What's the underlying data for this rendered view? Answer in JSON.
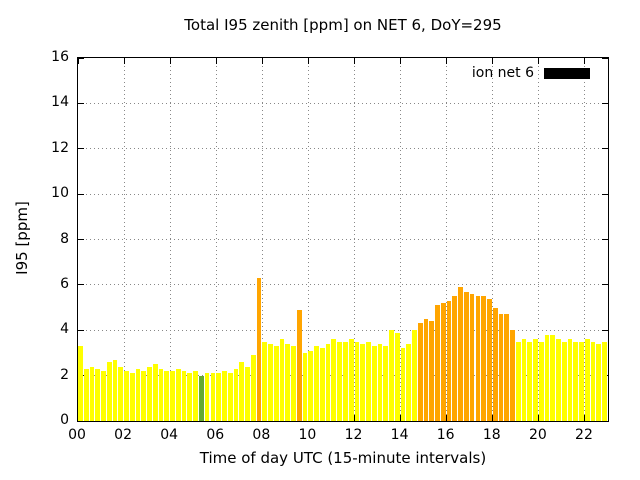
{
  "legend": {
    "label": "ion net 6",
    "swatch_color": "#000000"
  },
  "colors": {
    "yellow": "#ffff00",
    "orange": "#ffa500",
    "green": "#66aa33",
    "grid": "#888888",
    "axis": "#000000",
    "background": "#ffffff"
  },
  "chart_data": {
    "type": "bar",
    "title": "Total I95 zenith [ppm] on NET 6, DoY=295",
    "xlabel": "Time of day UTC (15-minute intervals)",
    "ylabel": "I95 [ppm]",
    "xlim": [
      0,
      23
    ],
    "ylim": [
      0,
      16
    ],
    "xticks": [
      0,
      2,
      4,
      6,
      8,
      10,
      12,
      14,
      16,
      18,
      20,
      22
    ],
    "xtick_labels": [
      "00",
      "02",
      "04",
      "06",
      "08",
      "10",
      "12",
      "14",
      "16",
      "18",
      "20",
      "22"
    ],
    "yticks": [
      0,
      2,
      4,
      6,
      8,
      10,
      12,
      14,
      16
    ],
    "grid": true,
    "legend_position": "top-right",
    "series_name": "ion net 6",
    "interval_hours": 0.25,
    "x": [
      0,
      0.25,
      0.5,
      0.75,
      1,
      1.25,
      1.5,
      1.75,
      2,
      2.25,
      2.5,
      2.75,
      3,
      3.25,
      3.5,
      3.75,
      4,
      4.25,
      4.5,
      4.75,
      5,
      5.25,
      5.5,
      5.75,
      6,
      6.25,
      6.5,
      6.75,
      7,
      7.25,
      7.5,
      7.75,
      8,
      8.25,
      8.5,
      8.75,
      9,
      9.25,
      9.5,
      9.75,
      10,
      10.25,
      10.5,
      10.75,
      11,
      11.25,
      11.5,
      11.75,
      12,
      12.25,
      12.5,
      12.75,
      13,
      13.25,
      13.5,
      13.75,
      14,
      14.25,
      14.5,
      14.75,
      15,
      15.25,
      15.5,
      15.75,
      16,
      16.25,
      16.5,
      16.75,
      17,
      17.25,
      17.5,
      17.75,
      18,
      18.25,
      18.5,
      18.75,
      19,
      19.25,
      19.5,
      19.75,
      20,
      20.25,
      20.5,
      20.75,
      21,
      21.25,
      21.5,
      21.75,
      22,
      22.25,
      22.5,
      22.75
    ],
    "values": [
      3.3,
      2.3,
      2.4,
      2.3,
      2.2,
      2.6,
      2.7,
      2.4,
      2.2,
      2.1,
      2.3,
      2.2,
      2.4,
      2.5,
      2.3,
      2.2,
      2.2,
      2.3,
      2.2,
      2.1,
      2.2,
      2.0,
      2.1,
      2.1,
      2.1,
      2.2,
      2.1,
      2.3,
      2.6,
      2.4,
      2.9,
      6.3,
      3.5,
      3.4,
      3.3,
      3.6,
      3.4,
      3.3,
      4.9,
      3.0,
      3.1,
      3.3,
      3.2,
      3.4,
      3.6,
      3.5,
      3.5,
      3.6,
      3.5,
      3.4,
      3.5,
      3.3,
      3.4,
      3.3,
      4.0,
      3.9,
      3.2,
      3.4,
      4.0,
      4.3,
      4.5,
      4.4,
      5.1,
      5.2,
      5.3,
      5.5,
      5.9,
      5.7,
      5.6,
      5.5,
      5.5,
      5.4,
      5.0,
      4.7,
      4.7,
      4.0,
      3.5,
      3.6,
      3.5,
      3.6,
      3.5,
      3.8,
      3.8,
      3.6,
      3.5,
      3.6,
      3.5,
      3.5,
      3.6,
      3.5,
      3.4,
      3.5
    ],
    "colors": [
      "yellow",
      "yellow",
      "yellow",
      "yellow",
      "yellow",
      "yellow",
      "yellow",
      "yellow",
      "yellow",
      "yellow",
      "yellow",
      "yellow",
      "yellow",
      "yellow",
      "yellow",
      "yellow",
      "yellow",
      "yellow",
      "yellow",
      "yellow",
      "yellow",
      "green",
      "yellow",
      "yellow",
      "yellow",
      "yellow",
      "yellow",
      "yellow",
      "yellow",
      "yellow",
      "yellow",
      "orange",
      "yellow",
      "yellow",
      "yellow",
      "yellow",
      "yellow",
      "yellow",
      "orange",
      "yellow",
      "yellow",
      "yellow",
      "yellow",
      "yellow",
      "yellow",
      "yellow",
      "yellow",
      "yellow",
      "yellow",
      "yellow",
      "yellow",
      "yellow",
      "yellow",
      "yellow",
      "yellow",
      "yellow",
      "yellow",
      "yellow",
      "yellow",
      "orange",
      "orange",
      "orange",
      "orange",
      "orange",
      "orange",
      "orange",
      "orange",
      "orange",
      "orange",
      "orange",
      "orange",
      "orange",
      "orange",
      "orange",
      "orange",
      "orange",
      "yellow",
      "yellow",
      "yellow",
      "yellow",
      "yellow",
      "yellow",
      "yellow",
      "yellow",
      "yellow",
      "yellow",
      "yellow",
      "yellow",
      "yellow",
      "yellow",
      "yellow",
      "yellow"
    ]
  }
}
